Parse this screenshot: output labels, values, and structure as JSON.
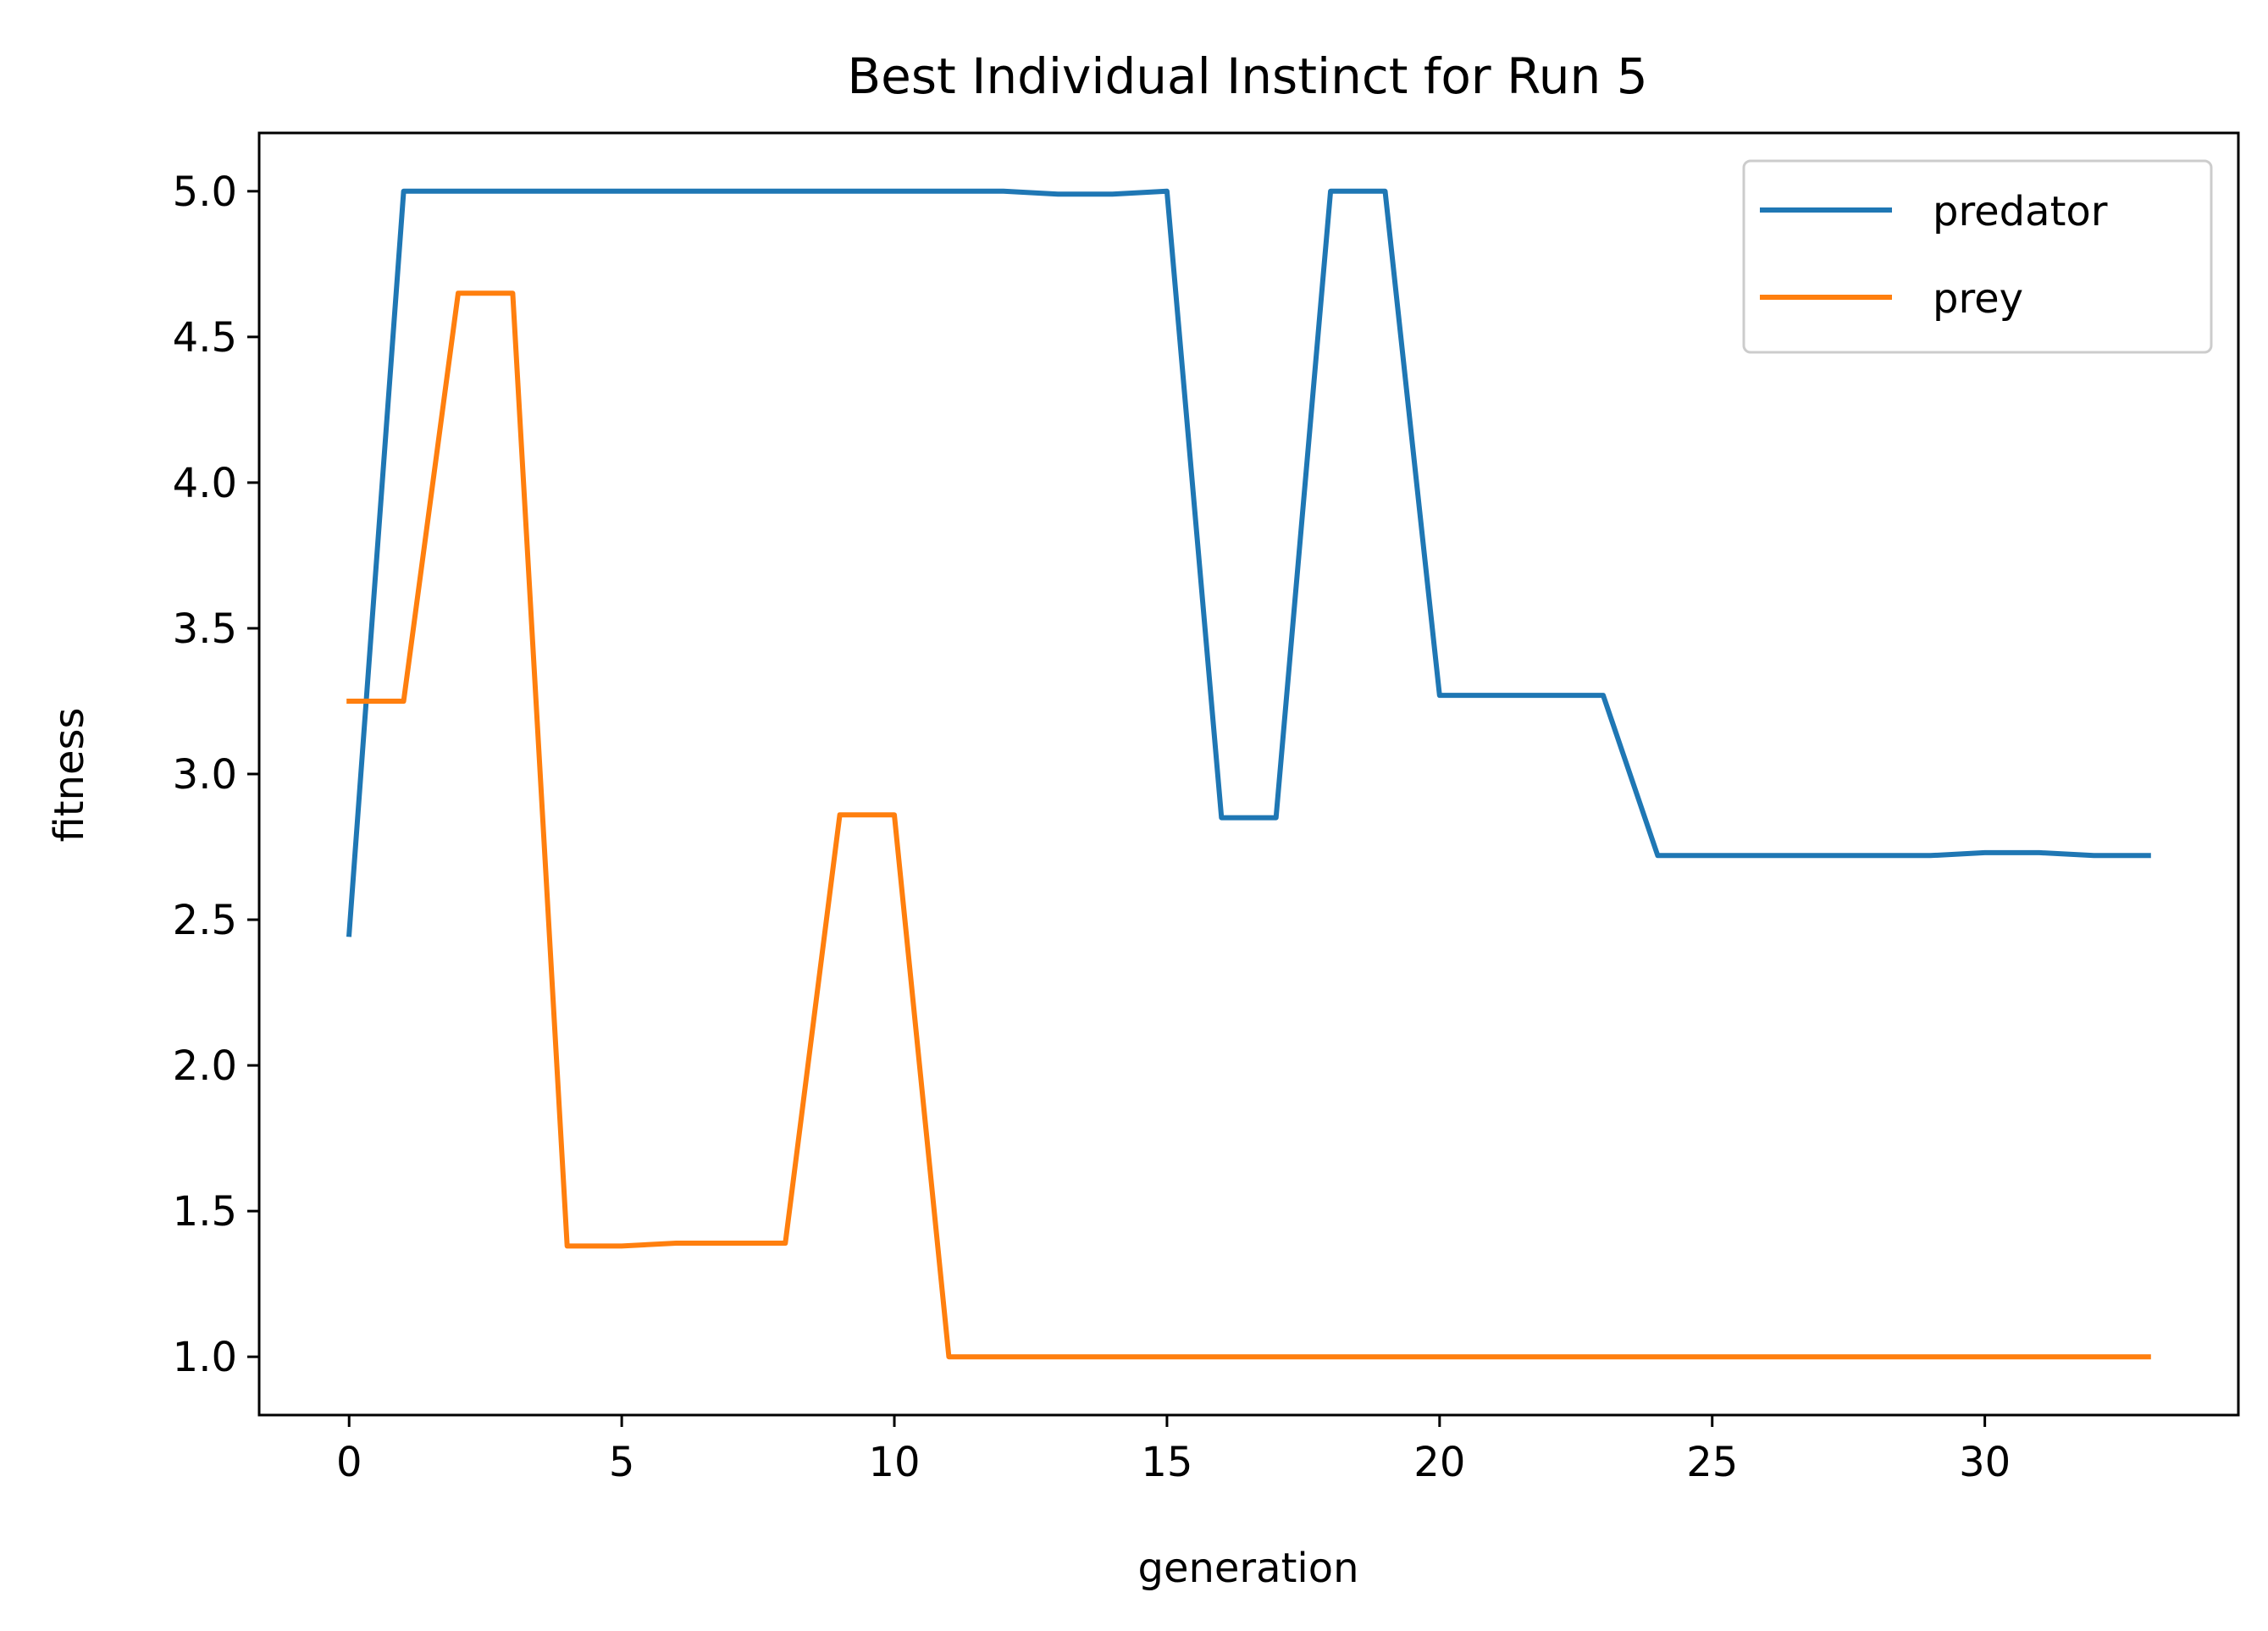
{
  "chart_data": {
    "type": "line",
    "title": "Best Individual Instinct for Run 5",
    "xlabel": "generation",
    "ylabel": "fitness",
    "xlim": [
      -1.65,
      34.65
    ],
    "ylim": [
      0.8,
      5.2
    ],
    "xticks": [
      0,
      5,
      10,
      15,
      20,
      25,
      30
    ],
    "yticks": [
      1.0,
      1.5,
      2.0,
      2.5,
      3.0,
      3.5,
      4.0,
      4.5,
      5.0
    ],
    "grid": false,
    "legend_position": "top-right",
    "x": [
      0,
      1,
      2,
      3,
      4,
      5,
      6,
      7,
      8,
      9,
      10,
      11,
      12,
      13,
      14,
      15,
      16,
      17,
      18,
      19,
      20,
      21,
      22,
      23,
      24,
      25,
      26,
      27,
      28,
      29,
      30,
      31,
      32,
      33
    ],
    "series": [
      {
        "name": "predator",
        "color": "#1f77b4",
        "values": [
          2.45,
          5.0,
          5.0,
          5.0,
          5.0,
          5.0,
          5.0,
          5.0,
          5.0,
          5.0,
          5.0,
          5.0,
          5.0,
          4.99,
          4.99,
          5.0,
          2.85,
          2.85,
          5.0,
          5.0,
          3.27,
          3.27,
          3.27,
          3.27,
          2.72,
          2.72,
          2.72,
          2.72,
          2.72,
          2.72,
          2.73,
          2.73,
          2.72,
          2.72
        ]
      },
      {
        "name": "prey",
        "color": "#ff7f0e",
        "values": [
          3.25,
          3.25,
          4.65,
          4.65,
          1.38,
          1.38,
          1.39,
          1.39,
          1.39,
          2.86,
          2.86,
          1.0,
          1.0,
          1.0,
          1.0,
          1.0,
          1.0,
          1.0,
          1.0,
          1.0,
          1.0,
          1.0,
          1.0,
          1.0,
          1.0,
          1.0,
          1.0,
          1.0,
          1.0,
          1.0,
          1.0,
          1.0,
          1.0,
          1.0
        ]
      }
    ]
  }
}
